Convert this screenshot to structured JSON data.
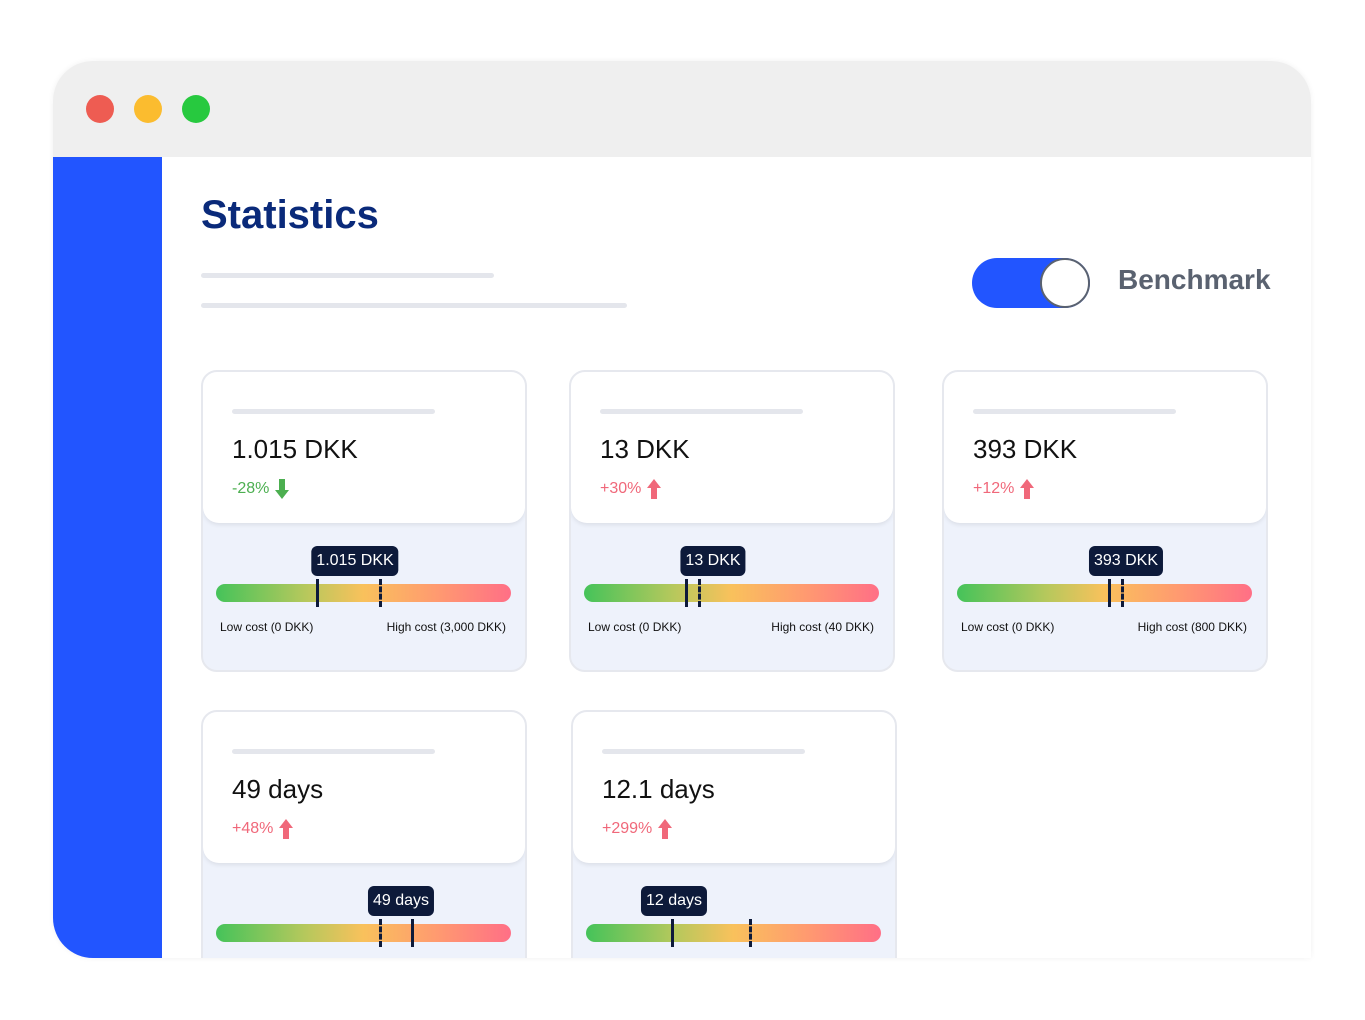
{
  "header": {
    "title": "Statistics",
    "toggle_label": "Benchmark"
  },
  "cards": [
    {
      "value": "1.015 DKK",
      "change": "-28%",
      "direction": "down",
      "color": "#4caf50",
      "tooltip": "1.015 DKK",
      "low_label": "Low cost (0 DKK)",
      "high_label": "High cost (3,000 DKK)"
    },
    {
      "value": "13 DKK",
      "change": "+30%",
      "direction": "up",
      "color": "#f0687a",
      "tooltip": "13 DKK",
      "low_label": "Low cost (0 DKK)",
      "high_label": "High cost (40 DKK)"
    },
    {
      "value": "393 DKK",
      "change": "+12%",
      "direction": "up",
      "color": "#f0687a",
      "tooltip": "393 DKK",
      "low_label": "Low cost (0 DKK)",
      "high_label": "High cost (800 DKK)"
    },
    {
      "value": "49 days",
      "change": "+48%",
      "direction": "up",
      "color": "#f0687a",
      "tooltip": "49 days"
    },
    {
      "value": "12.1 days",
      "change": "+299%",
      "direction": "up",
      "color": "#f0687a",
      "tooltip": "12 days"
    }
  ]
}
